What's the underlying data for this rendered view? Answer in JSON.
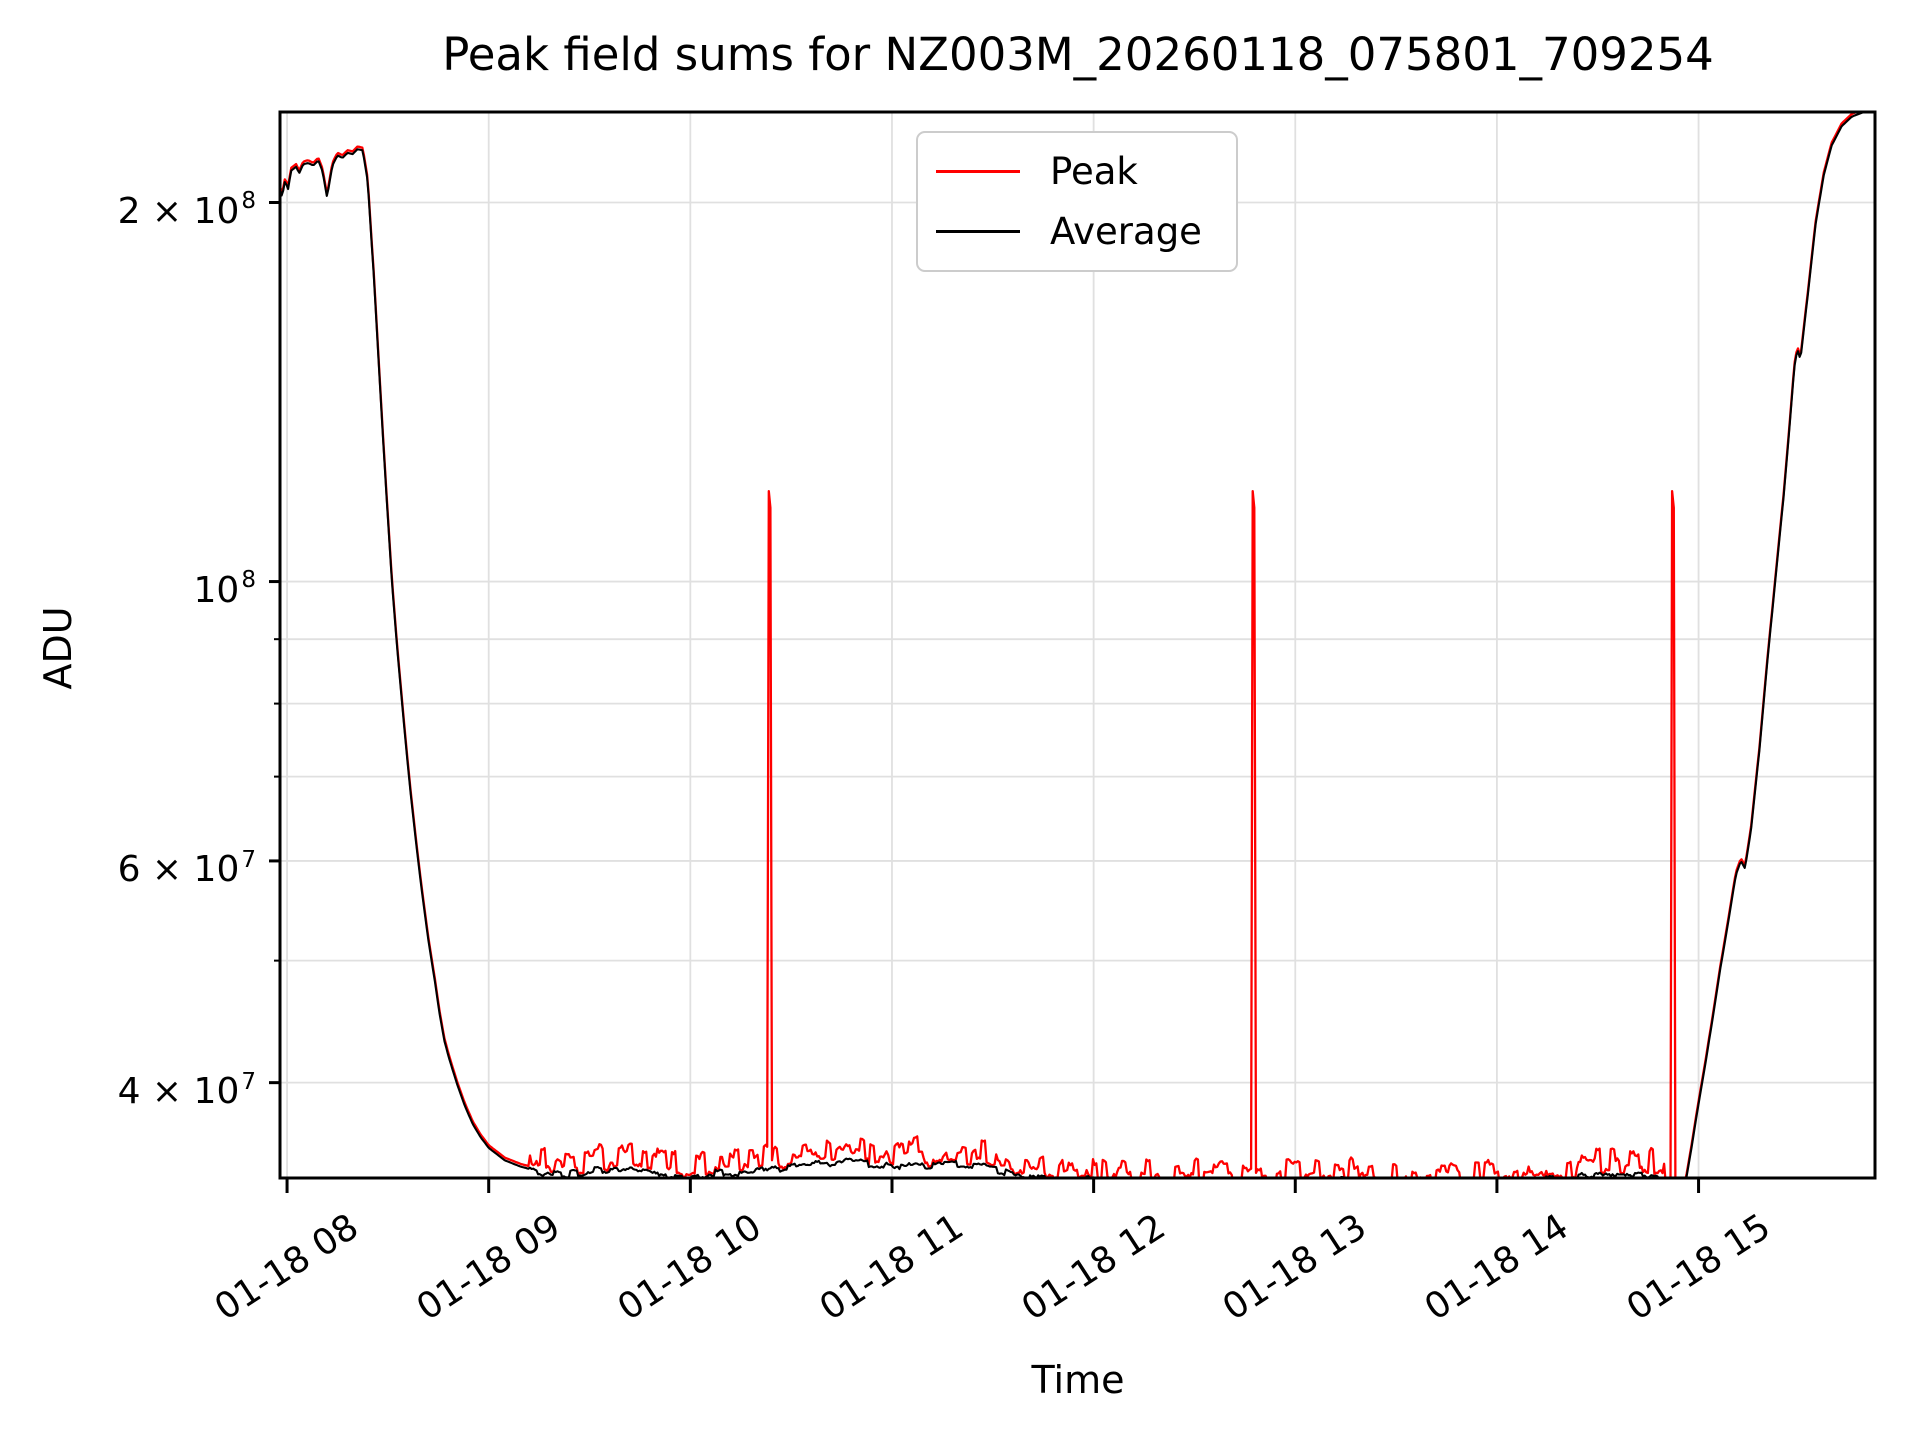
{
  "figure": {
    "title": "Peak field sums for NZ003M_20260118_075801_709254",
    "xlabel": "Time",
    "ylabel": "ADU"
  },
  "legend": {
    "position": "upper center",
    "entries": [
      {
        "label": "Peak",
        "color": "#ff0000"
      },
      {
        "label": "Average",
        "color": "#000000"
      }
    ]
  },
  "colors": {
    "peak_line": "#ff0000",
    "average_line": "#000000",
    "grid": "#e0e0e0",
    "spine": "#000000",
    "background": "#ffffff",
    "legend_border": "#cccccc"
  },
  "axes": {
    "x_tick_rotation_deg": 33,
    "x_ticks": [
      {
        "hour": 8,
        "label": "01-18 08"
      },
      {
        "hour": 9,
        "label": "01-18 09"
      },
      {
        "hour": 10,
        "label": "01-18 10"
      },
      {
        "hour": 11,
        "label": "01-18 11"
      },
      {
        "hour": 12,
        "label": "01-18 12"
      },
      {
        "hour": 13,
        "label": "01-18 13"
      },
      {
        "hour": 14,
        "label": "01-18 14"
      },
      {
        "hour": 15,
        "label": "01-18 15"
      }
    ],
    "y_scale": "log",
    "y_ticks_labeled": [
      {
        "value": 200000000.0,
        "base": "2 × 10",
        "exp": "8"
      },
      {
        "value": 100000000.0,
        "base": "10",
        "exp": "8"
      },
      {
        "value": 60000000.0,
        "base": "6 × 10",
        "exp": "7"
      },
      {
        "value": 40000000.0,
        "base": "4 × 10",
        "exp": "7"
      }
    ],
    "y_ticks_minor": [
      90000000.0,
      80000000.0,
      70000000.0,
      50000000.0
    ]
  },
  "chart_data": {
    "type": "line",
    "title": "Peak field sums for NZ003M_20260118_075801_709254",
    "xlabel": "Time",
    "ylabel": "ADU",
    "x_unit": "hour of day on 01-18",
    "xlim": [
      7.965,
      15.875
    ],
    "ylim": [
      33600000.0,
      236000000.0
    ],
    "yscale": "log",
    "grid": "both",
    "legend_position": "upper center",
    "series": [
      {
        "name": "Average",
        "color": "#000000",
        "keypoints": [
          [
            7.965,
            205000000.0
          ],
          [
            7.975,
            202000000.0
          ],
          [
            7.99,
            208000000.0
          ],
          [
            8.005,
            205000000.0
          ],
          [
            8.02,
            212000000.0
          ],
          [
            8.045,
            213500000.0
          ],
          [
            8.06,
            211000000.0
          ],
          [
            8.08,
            214500000.0
          ],
          [
            8.105,
            215000000.0
          ],
          [
            8.13,
            214000000.0
          ],
          [
            8.155,
            216000000.0
          ],
          [
            8.175,
            212000000.0
          ],
          [
            8.198,
            202000000.0
          ],
          [
            8.225,
            214000000.0
          ],
          [
            8.25,
            218000000.0
          ],
          [
            8.275,
            217000000.0
          ],
          [
            8.3,
            219000000.0
          ],
          [
            8.325,
            218500000.0
          ],
          [
            8.35,
            220500000.0
          ],
          [
            8.375,
            220000000.0
          ],
          [
            8.4,
            208000000.0
          ],
          [
            8.43,
            175000000.0
          ],
          [
            8.46,
            144000000.0
          ],
          [
            8.49,
            119000000.0
          ],
          [
            8.52,
            100000000.0
          ],
          [
            8.55,
            87000000.0
          ],
          [
            8.58,
            77000000.0
          ],
          [
            8.61,
            68500000.0
          ],
          [
            8.64,
            62000000.0
          ],
          [
            8.67,
            56500000.0
          ],
          [
            8.7,
            52000000.0
          ],
          [
            8.73,
            48500000.0
          ],
          [
            8.755,
            45500000.0
          ],
          [
            8.78,
            43200000.0
          ],
          [
            8.8,
            42000000.0
          ],
          [
            8.82,
            41000000.0
          ],
          [
            8.85,
            39600000.0
          ],
          [
            8.88,
            38400000.0
          ],
          [
            8.92,
            37100000.0
          ],
          [
            8.96,
            36200000.0
          ],
          [
            9.0,
            35500000.0
          ],
          [
            9.08,
            34700000.0
          ],
          [
            9.16,
            34300000.0
          ],
          [
            9.25,
            34000000.0
          ],
          [
            9.4,
            33800000.0
          ],
          [
            9.55,
            34100000.0
          ],
          [
            9.7,
            34200000.0
          ],
          [
            9.85,
            33800000.0
          ],
          [
            10.0,
            33700000.0
          ],
          [
            10.15,
            33900000.0
          ],
          [
            10.3,
            34000000.0
          ],
          [
            10.45,
            34200000.0
          ],
          [
            10.6,
            34400000.0
          ],
          [
            10.75,
            34600000.0
          ],
          [
            10.9,
            34500000.0
          ],
          [
            11.05,
            34300000.0
          ],
          [
            11.2,
            34300000.0
          ],
          [
            11.35,
            34500000.0
          ],
          [
            11.5,
            34200000.0
          ],
          [
            11.65,
            33700000.0
          ],
          [
            11.8,
            33400000.0
          ],
          [
            11.95,
            33500000.0
          ],
          [
            12.1,
            33400000.0
          ],
          [
            12.25,
            33400000.0
          ],
          [
            12.4,
            33300000.0
          ],
          [
            12.55,
            33100000.0
          ],
          [
            12.7,
            33100000.0
          ],
          [
            12.85,
            33200000.0
          ],
          [
            13.0,
            33300000.0
          ],
          [
            13.15,
            33400000.0
          ],
          [
            13.3,
            33400000.0
          ],
          [
            13.45,
            33300000.0
          ],
          [
            13.6,
            33200000.0
          ],
          [
            13.75,
            33300000.0
          ],
          [
            13.9,
            33300000.0
          ],
          [
            14.05,
            33400000.0
          ],
          [
            14.2,
            33500000.0
          ],
          [
            14.35,
            33700000.0
          ],
          [
            14.5,
            33800000.0
          ],
          [
            14.62,
            34000000.0
          ],
          [
            14.72,
            33800000.0
          ],
          [
            14.8,
            33600000.0
          ],
          [
            14.865,
            32800000.0
          ],
          [
            14.895,
            32400000.0
          ],
          [
            14.935,
            33300000.0
          ],
          [
            14.965,
            35500000.0
          ],
          [
            15.0,
            38500000.0
          ],
          [
            15.035,
            41500000.0
          ],
          [
            15.07,
            45000000.0
          ],
          [
            15.11,
            49500000.0
          ],
          [
            15.15,
            54000000.0
          ],
          [
            15.185,
            58500000.0
          ],
          [
            15.21,
            60000000.0
          ],
          [
            15.23,
            59200000.0
          ],
          [
            15.26,
            63500000.0
          ],
          [
            15.3,
            73000000.0
          ],
          [
            15.34,
            86000000.0
          ],
          [
            15.38,
            100000000.0
          ],
          [
            15.42,
            116000000.0
          ],
          [
            15.45,
            132000000.0
          ],
          [
            15.475,
            148000000.0
          ],
          [
            15.49,
            153000000.0
          ],
          [
            15.505,
            150000000.0
          ],
          [
            15.54,
            168000000.0
          ],
          [
            15.58,
            192000000.0
          ],
          [
            15.62,
            210000000.0
          ],
          [
            15.66,
            222000000.0
          ],
          [
            15.71,
            230000000.0
          ],
          [
            15.76,
            234000000.0
          ],
          [
            15.82,
            236000000.0
          ],
          [
            15.875,
            238000000.0
          ]
        ]
      },
      {
        "name": "Peak",
        "color": "#ff0000",
        "relation": "tracks Average, sits 1-5% above it with rapid noise in the low baseline (09:10-14:50), coincides with Average on the high plateaus and ramps",
        "baseline_offset_range": [
          0.004,
          0.05
        ],
        "spikes": [
          {
            "t": 10.39,
            "value": 118000000.0
          },
          {
            "t": 12.79,
            "value": 118000000.0
          },
          {
            "t": 14.87,
            "value": 118000000.0
          }
        ]
      }
    ]
  }
}
